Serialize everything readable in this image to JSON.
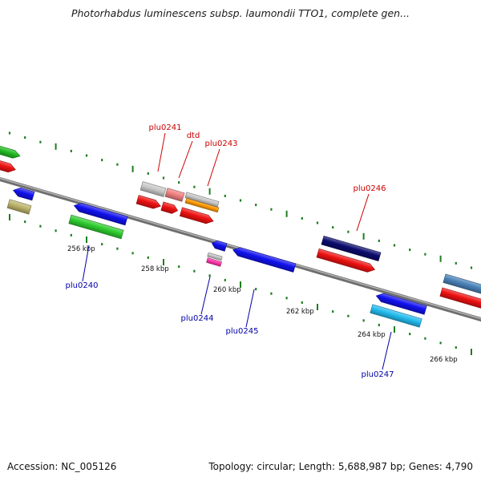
{
  "header": {
    "title": "Photorhabdus luminescens subsp. laumondii TTO1, complete gen..."
  },
  "footer": {
    "accession": "Accession: NC_005126",
    "summary": "Topology: circular; Length: 5,688,987 bp; Genes: 4,790"
  },
  "colors": {
    "backbone": "#8c8c8c",
    "tick": "#1e7d1e",
    "forward_label": "#cc0000",
    "reverse_label": "#0000aa"
  },
  "scale_labels": [
    "256 kbp",
    "258 kbp",
    "260 kbp",
    "262 kbp",
    "264 kbp",
    "266 kbp"
  ],
  "genes_forward": [
    {
      "label": "plu0241"
    },
    {
      "label": "dtd"
    },
    {
      "label": "plu0243"
    },
    {
      "label": "plu0246"
    }
  ],
  "genes_reverse": [
    {
      "label": "plu0240"
    },
    {
      "label": "plu0244"
    },
    {
      "label": "plu0245"
    },
    {
      "label": "plu0247"
    }
  ]
}
